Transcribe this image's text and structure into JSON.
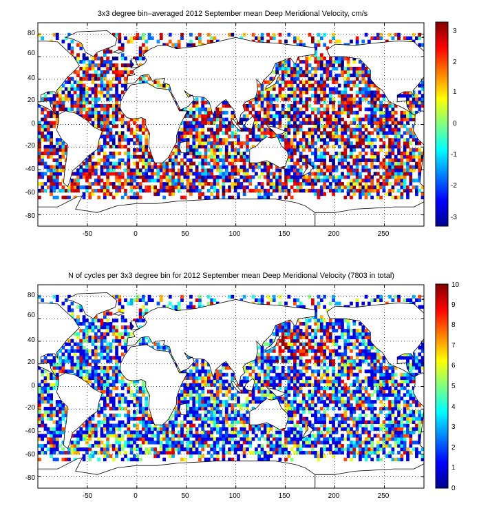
{
  "chart_data": [
    {
      "type": "heatmap",
      "title": "3x3 degree bin–averaged 2012 September mean Deep Meridional Velocity, cm/s",
      "xlabel": "",
      "ylabel": "",
      "xlim": [
        -100,
        290
      ],
      "ylim": [
        -90,
        90
      ],
      "x_ticks": [
        "-50",
        "0",
        "50",
        "100",
        "150",
        "200",
        "250"
      ],
      "y_ticks": [
        "80",
        "60",
        "40",
        "20",
        "0",
        "-20",
        "-40",
        "-60",
        "-80"
      ],
      "colorbar": {
        "range": [
          -3.4,
          3.4
        ],
        "ticks": [
          "3",
          "2",
          "1",
          "0",
          "-1",
          "-2",
          "-3"
        ],
        "colormap": "jet"
      },
      "grid": true,
      "bin_size_deg": 3,
      "seed": 7
    },
    {
      "type": "heatmap",
      "title": "N of cycles per 3x3 degree bin for 2012 September mean Deep Meridional Velocity (7803 in total)",
      "xlabel": "",
      "ylabel": "",
      "xlim": [
        -100,
        290
      ],
      "ylim": [
        -90,
        90
      ],
      "x_ticks": [
        "-50",
        "0",
        "50",
        "100",
        "150",
        "200",
        "250"
      ],
      "y_ticks": [
        "80",
        "60",
        "40",
        "20",
        "0",
        "-20",
        "-40",
        "-60",
        "-80"
      ],
      "colorbar": {
        "range": [
          0,
          10
        ],
        "ticks": [
          "10",
          "9",
          "8",
          "7",
          "6",
          "5",
          "4",
          "3",
          "2",
          "1",
          "0"
        ],
        "colormap": "jet"
      },
      "grid": true,
      "bin_size_deg": 3,
      "seed": 7
    }
  ]
}
